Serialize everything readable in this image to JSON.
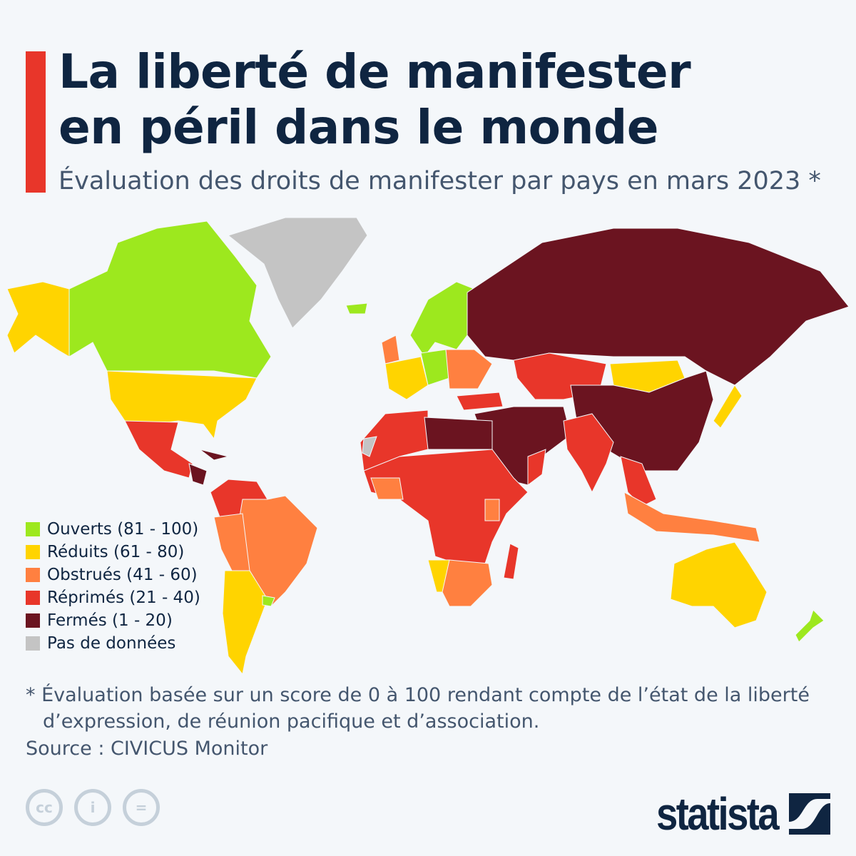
{
  "header": {
    "title_line1": "La liberté de manifester",
    "title_line2": "en péril dans le monde",
    "subtitle": "Évaluation des droits de manifester par pays en mars 2023 *",
    "accent_color": "#e8362a"
  },
  "legend": {
    "items": [
      {
        "label": "Ouverts (81 - 100)",
        "color": "#9de81e"
      },
      {
        "label": "Réduits (61 - 80)",
        "color": "#ffd400"
      },
      {
        "label": "Obstrués (41 - 60)",
        "color": "#ff8040"
      },
      {
        "label": "Réprimés (21 - 40)",
        "color": "#e8362a"
      },
      {
        "label": "Fermés (1 - 20)",
        "color": "#6b1420"
      },
      {
        "label": "Pas de données",
        "color": "#c4c4c4"
      }
    ]
  },
  "footer": {
    "note_line1": "* Évaluation basée sur un score de 0 à 100 rendant compte de l’état de la liberté",
    "note_line2": "d’expression, de réunion pacifique et d’association.",
    "source": "Source : CIVICUS Monitor",
    "license_icons": [
      "cc-icon",
      "attribution-icon",
      "no-derivatives-icon"
    ],
    "brand": "statista"
  }
}
